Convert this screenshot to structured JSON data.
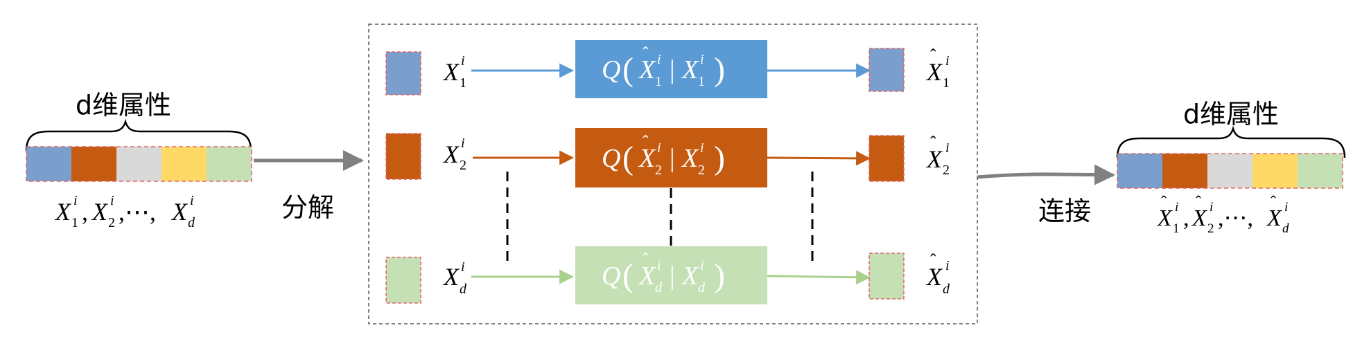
{
  "colors": {
    "blue": "#7a9fcc",
    "orange": "#c55a11",
    "gray": "#d9d9d9",
    "yellow": "#ffd966",
    "green": "#c5e0b4",
    "q_blue": "#5b9bd5",
    "q_orange": "#c55a11",
    "q_green": "#c5e0b4",
    "arrow_blue": "#5b9bd5",
    "arrow_orange": "#c55a11",
    "arrow_green": "#a9d18e",
    "gray_arrow": "#808080",
    "dashed_red": "#e06666"
  },
  "left": {
    "brace_label": "d维属性",
    "attr_label": "X_1^i, X_2^i, ⋯, X_d^i"
  },
  "decompose_label": "分解",
  "connect_label": "连接",
  "right": {
    "brace_label": "d维属性",
    "attr_label": "X̂_1^i, X̂_2^i, ⋯, X̂_d^i"
  },
  "rows": [
    {
      "input": "X_1^i",
      "box": "Q(X̂_1^i | X_1^i)",
      "output": "X̂_1^i",
      "color": "blue"
    },
    {
      "input": "X_2^i",
      "box": "Q(X̂_2^i | X_2^i)",
      "output": "X̂_2^i",
      "color": "orange"
    },
    {
      "input": "X_d^i",
      "box": "Q(X̂_d^i | X_d^i)",
      "output": "X̂_d^i",
      "color": "green"
    }
  ]
}
